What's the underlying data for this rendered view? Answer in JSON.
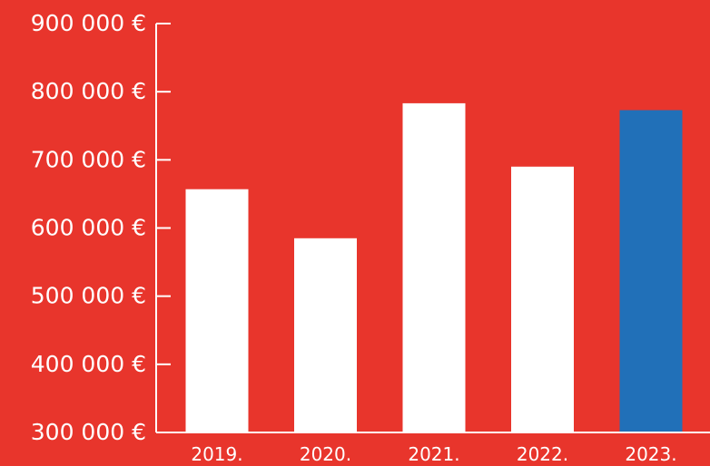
{
  "colors": {
    "background": "#e8352c",
    "bar_default": "#ffffff",
    "bar_highlight": "#2170b8",
    "axis": "#ffffff",
    "text": "#ffffff"
  },
  "chart_data": {
    "type": "bar",
    "title": "",
    "xlabel": "",
    "ylabel": "",
    "categories": [
      "2019.",
      "2020.",
      "2021.",
      "2022.",
      "2023."
    ],
    "values": [
      657000,
      585000,
      783000,
      690000,
      773000
    ],
    "highlight_index": 4,
    "ylim": [
      300000,
      900000
    ],
    "yticks": [
      300000,
      400000,
      500000,
      600000,
      700000,
      800000,
      900000
    ],
    "ytick_labels": [
      "300 000 €",
      "400 000 €",
      "500 000 €",
      "600 000 €",
      "700 000 €",
      "800 000 €",
      "900 000 €"
    ],
    "grid": false,
    "legend": "none"
  }
}
